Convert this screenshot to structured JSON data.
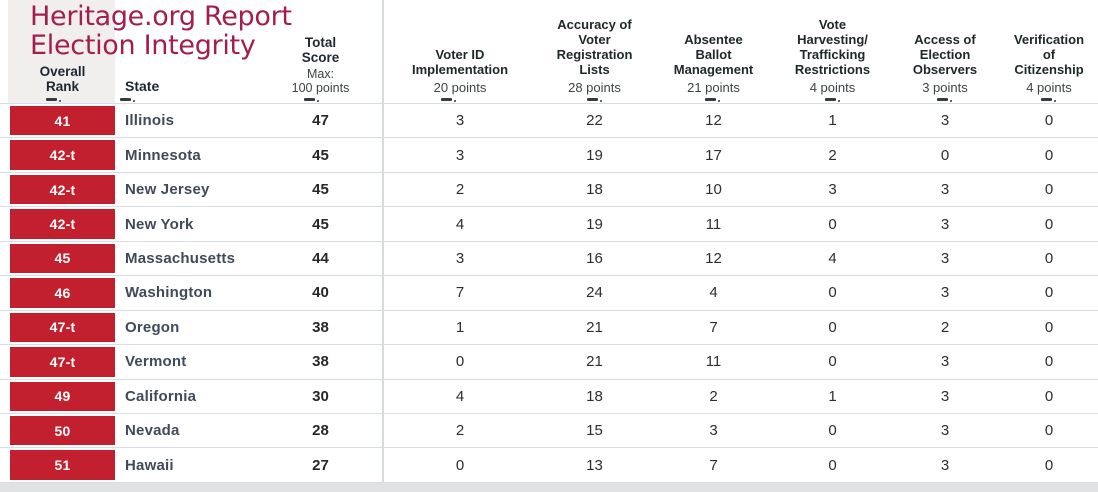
{
  "title": {
    "line1": "Heritage.org Report",
    "line2": "Election Integrity"
  },
  "header": {
    "overall_rank": "Overall\nRank",
    "state": "State",
    "total_score": "Total\nScore",
    "max_line1": "Max:",
    "max_line2": "100 points"
  },
  "colors": {
    "title_text": "#a31e4e",
    "rank_cell": "#c2202e",
    "header_gray_block": "#f1efed",
    "row_border": "#d9dde1"
  },
  "chart_data": {
    "type": "table",
    "title": "Heritage.org Report Election Integrity",
    "total_score_max": 100,
    "columns": [
      {
        "label": "Voter ID\nImplementation",
        "points": "20 points",
        "max_points": 20
      },
      {
        "label": "Accuracy of\nVoter\nRegistration\nLists",
        "points": "28 points",
        "max_points": 28
      },
      {
        "label": "Absentee\nBallot\nManagement",
        "points": "21 points",
        "max_points": 21
      },
      {
        "label": "Vote\nHarvesting/\nTrafficking\nRestrictions",
        "points": "4 points",
        "max_points": 4
      },
      {
        "label": "Access of\nElection\nObservers",
        "points": "3 points",
        "max_points": 3
      },
      {
        "label": "Verification\nof\nCitizenship",
        "points": "4 points",
        "max_points": 4
      }
    ],
    "rows": [
      {
        "rank": "41",
        "state": "Illinois",
        "total": 47,
        "values": [
          3,
          22,
          12,
          1,
          3,
          0
        ]
      },
      {
        "rank": "42-t",
        "state": "Minnesota",
        "total": 45,
        "values": [
          3,
          19,
          17,
          2,
          0,
          0
        ]
      },
      {
        "rank": "42-t",
        "state": "New Jersey",
        "total": 45,
        "values": [
          2,
          18,
          10,
          3,
          3,
          0
        ]
      },
      {
        "rank": "42-t",
        "state": "New York",
        "total": 45,
        "values": [
          4,
          19,
          11,
          0,
          3,
          0
        ]
      },
      {
        "rank": "45",
        "state": "Massachusetts",
        "total": 44,
        "values": [
          3,
          16,
          12,
          4,
          3,
          0
        ]
      },
      {
        "rank": "46",
        "state": "Washington",
        "total": 40,
        "values": [
          7,
          24,
          4,
          0,
          3,
          0
        ]
      },
      {
        "rank": "47-t",
        "state": "Oregon",
        "total": 38,
        "values": [
          1,
          21,
          7,
          0,
          2,
          0
        ]
      },
      {
        "rank": "47-t",
        "state": "Vermont",
        "total": 38,
        "values": [
          0,
          21,
          11,
          0,
          3,
          0
        ]
      },
      {
        "rank": "49",
        "state": "California",
        "total": 30,
        "values": [
          4,
          18,
          2,
          1,
          3,
          0
        ]
      },
      {
        "rank": "50",
        "state": "Nevada",
        "total": 28,
        "values": [
          2,
          15,
          3,
          0,
          3,
          0
        ]
      },
      {
        "rank": "51",
        "state": "Hawaii",
        "total": 27,
        "values": [
          0,
          13,
          7,
          0,
          3,
          0
        ]
      }
    ]
  }
}
